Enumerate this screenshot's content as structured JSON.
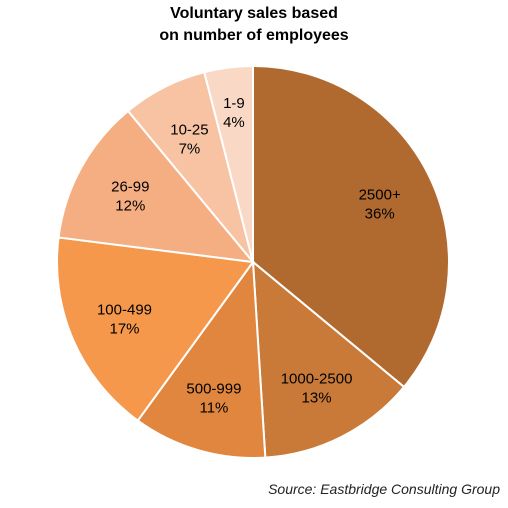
{
  "title": {
    "line1": "Voluntary sales based",
    "line2": "on number of employees"
  },
  "source": "Source: Eastbridge Consulting Group",
  "chart_data": {
    "type": "pie",
    "title": "Voluntary sales based on number of employees",
    "start_angle_deg": 0,
    "direction": "clockwise",
    "legend": "none",
    "slices": [
      {
        "label": "2500+",
        "pct_label": "36%",
        "value": 36,
        "color": "#B06A30"
      },
      {
        "label": "1000-2500",
        "pct_label": "13%",
        "value": 13,
        "color": "#C97A38"
      },
      {
        "label": "500-999",
        "pct_label": "11%",
        "value": 11,
        "color": "#E0863E"
      },
      {
        "label": "100-499",
        "pct_label": "17%",
        "value": 17,
        "color": "#F5984B"
      },
      {
        "label": "26-99",
        "pct_label": "12%",
        "value": 12,
        "color": "#F4AE82"
      },
      {
        "label": "10-25",
        "pct_label": "7%",
        "value": 7,
        "color": "#F7C3A3"
      },
      {
        "label": "1-9",
        "pct_label": "4%",
        "value": 4,
        "color": "#F9D8C6"
      }
    ]
  }
}
